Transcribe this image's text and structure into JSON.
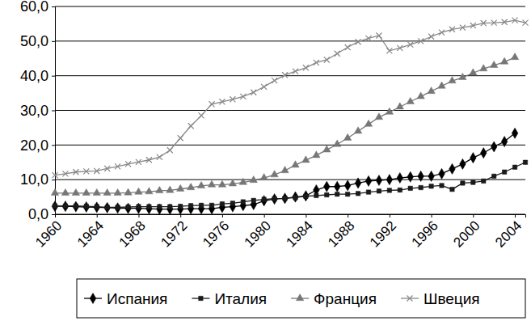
{
  "chart_data": {
    "type": "line",
    "x": [
      1960,
      1961,
      1962,
      1963,
      1964,
      1965,
      1966,
      1967,
      1968,
      1969,
      1970,
      1971,
      1972,
      1973,
      1974,
      1975,
      1976,
      1977,
      1978,
      1979,
      1980,
      1981,
      1982,
      1983,
      1984,
      1985,
      1986,
      1987,
      1988,
      1989,
      1990,
      1991,
      1992,
      1993,
      1994,
      1995,
      1996,
      1997,
      1998,
      1999,
      2000,
      2001,
      2002,
      2003,
      2004,
      2005
    ],
    "xlim": [
      1960,
      2005
    ],
    "xticks": [
      1960,
      1964,
      1968,
      1972,
      1976,
      1980,
      1984,
      1988,
      1992,
      1996,
      2000,
      2004
    ],
    "ylim": [
      0,
      60
    ],
    "yticks": [
      {
        "value": 0,
        "label": "0,0"
      },
      {
        "value": 10,
        "label": "10,0"
      },
      {
        "value": 20,
        "label": "20,0"
      },
      {
        "value": 30,
        "label": "30,0"
      },
      {
        "value": 40,
        "label": "40,0"
      },
      {
        "value": 50,
        "label": "50,0"
      },
      {
        "value": 60,
        "label": "60,0"
      }
    ],
    "grid": true,
    "legend": "bottom",
    "series": [
      {
        "name": "Испания",
        "color": "#000000",
        "marker": "diamond",
        "line_style": "solid",
        "values": [
          2.3,
          2.3,
          2.2,
          2.1,
          2.0,
          1.9,
          1.8,
          1.7,
          1.7,
          1.6,
          1.5,
          1.5,
          1.5,
          1.6,
          1.6,
          1.6,
          2.0,
          2.2,
          2.5,
          2.8,
          3.9,
          4.4,
          4.6,
          5.0,
          5.3,
          7.0,
          8.0,
          8.0,
          8.3,
          9.0,
          9.6,
          9.8,
          10.0,
          10.5,
          10.8,
          11.0,
          11.0,
          11.7,
          13.1,
          14.5,
          16.3,
          17.7,
          19.5,
          21.0,
          23.4,
          null
        ]
      },
      {
        "name": "Италия",
        "color": "#1a1a1a",
        "marker": "square",
        "line_style": "solid",
        "values": [
          2.4,
          2.4,
          2.4,
          2.3,
          2.2,
          2.0,
          2.0,
          2.1,
          2.2,
          2.2,
          2.2,
          2.2,
          2.3,
          2.5,
          2.6,
          2.6,
          3.0,
          3.2,
          3.6,
          4.0,
          4.3,
          4.5,
          4.6,
          4.8,
          5.2,
          5.4,
          5.6,
          5.8,
          5.8,
          6.0,
          6.4,
          6.7,
          6.9,
          7.0,
          7.5,
          7.7,
          8.1,
          8.3,
          7.2,
          9.0,
          9.2,
          9.6,
          11.0,
          12.2,
          13.6,
          15.0
        ]
      },
      {
        "name": "Франция",
        "color": "#777777",
        "marker": "triangle",
        "line_style": "solid",
        "values": [
          6.1,
          6.1,
          6.1,
          6.1,
          6.1,
          6.1,
          6.1,
          6.2,
          6.4,
          6.5,
          6.8,
          6.9,
          7.3,
          7.7,
          8.2,
          8.5,
          8.5,
          8.8,
          9.2,
          9.8,
          10.5,
          11.4,
          12.6,
          14.2,
          15.6,
          17.0,
          18.6,
          20.2,
          22.0,
          24.0,
          26.0,
          28.0,
          29.5,
          31.0,
          32.5,
          34.0,
          35.5,
          37.0,
          38.5,
          39.5,
          40.8,
          42.0,
          43.0,
          44.0,
          45.3,
          null
        ]
      },
      {
        "name": "Швеция",
        "color": "#888888",
        "marker": "x",
        "line_style": "solid",
        "values": [
          11.3,
          11.7,
          12.2,
          12.4,
          12.5,
          13.2,
          13.8,
          14.5,
          15.1,
          15.7,
          16.5,
          18.5,
          22.0,
          25.5,
          28.5,
          31.8,
          32.5,
          33.2,
          34.0,
          35.2,
          36.8,
          38.6,
          40.2,
          41.3,
          42.3,
          43.8,
          44.6,
          46.4,
          48.2,
          49.8,
          50.8,
          51.6,
          47.2,
          48.0,
          49.0,
          50.0,
          51.3,
          52.5,
          53.4,
          53.9,
          54.5,
          55.2,
          55.3,
          55.5,
          56.0,
          55.3
        ]
      }
    ]
  }
}
